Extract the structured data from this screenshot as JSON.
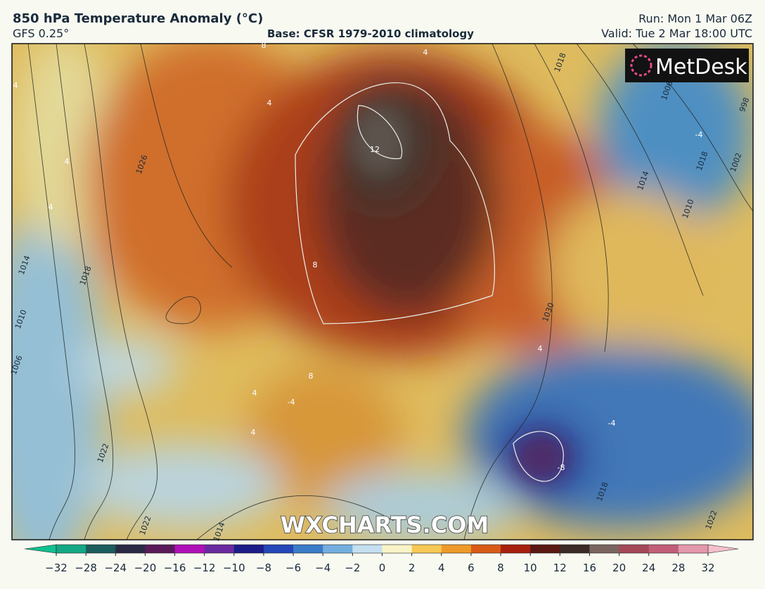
{
  "header": {
    "title": "850 hPa Temperature Anomaly (°C)",
    "model": "GFS 0.25°",
    "base": "Base: CFSR 1979-2010 climatology",
    "run": "Run: Mon 1 Mar 06Z",
    "valid": "Valid: Tue 2 Mar 18:00 UTC"
  },
  "logo": "MetDesk",
  "watermark": "WXCHARTS.COM",
  "isobar_labels": [
    "1026",
    "1018",
    "1014",
    "1010",
    "1006",
    "1022",
    "1022",
    "1014",
    "1018",
    "1014",
    "1010",
    "1002",
    "998",
    "1006",
    "1030",
    "1018",
    "1022",
    "1018"
  ],
  "anomaly_labels": [
    "4",
    "4",
    "4",
    "8",
    "12",
    "8",
    "8",
    "4",
    "4",
    "4",
    "-4",
    "-4",
    "-4",
    "-8",
    "4",
    "4"
  ],
  "colorbar": {
    "ticks": [
      {
        "value": -32,
        "label": "−32"
      },
      {
        "value": -28,
        "label": "−28"
      },
      {
        "value": -24,
        "label": "−24"
      },
      {
        "value": -20,
        "label": "−20"
      },
      {
        "value": -16,
        "label": "−16"
      },
      {
        "value": -12,
        "label": "−12"
      },
      {
        "value": -10,
        "label": "−10"
      },
      {
        "value": -8,
        "label": "−8"
      },
      {
        "value": -6,
        "label": "−6"
      },
      {
        "value": -4,
        "label": "−4"
      },
      {
        "value": -2,
        "label": "−2"
      },
      0,
      2,
      4,
      6,
      8,
      10,
      12,
      16,
      20,
      24,
      28,
      32
    ],
    "colors": [
      "#14a884",
      "#1b5c5c",
      "#2b2a45",
      "#5a1a5a",
      "#b010b8",
      "#6a2aa0",
      "#1c1c88",
      "#2446b8",
      "#3a7cc8",
      "#74aede",
      "#c4dff0",
      "#fbf3c8",
      "#f6c854",
      "#ee9a2a",
      "#d85a16",
      "#a8200e",
      "#5a1812",
      "#3c2a26",
      "#7a6460",
      "#a44858",
      "#c25e78",
      "#e398ab"
    ],
    "low_color": "#10c090",
    "high_color": "#f4c0cc"
  }
}
